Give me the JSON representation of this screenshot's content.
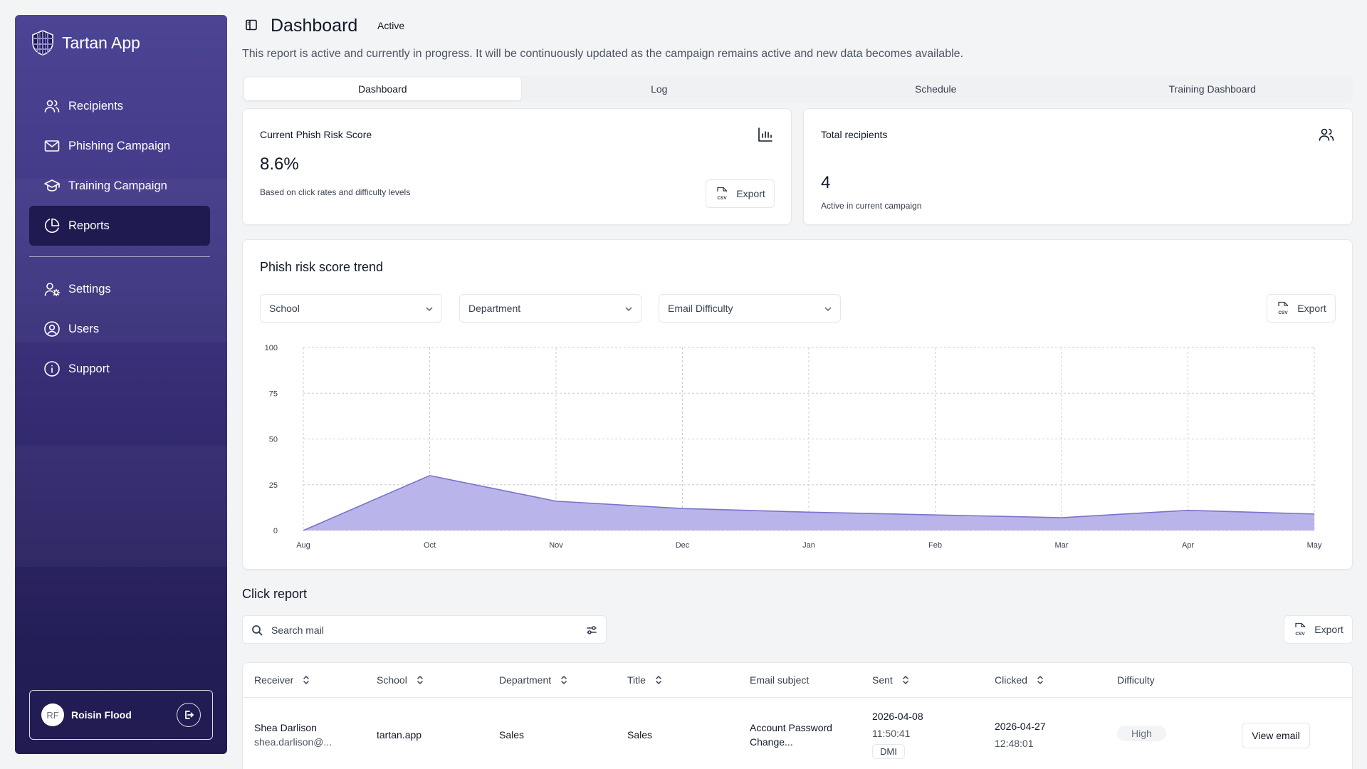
{
  "app": {
    "name": "Tartan App"
  },
  "sidebar": {
    "items": [
      {
        "label": "Recipients",
        "icon": "users-icon"
      },
      {
        "label": "Phishing Campaign",
        "icon": "mail-icon"
      },
      {
        "label": "Training Campaign",
        "icon": "graduation-cap-icon"
      },
      {
        "label": "Reports",
        "icon": "pie-chart-icon",
        "active": true
      },
      {
        "label": "Settings",
        "icon": "user-cog-icon"
      },
      {
        "label": "Users",
        "icon": "user-circle-icon"
      },
      {
        "label": "Support",
        "icon": "info-icon"
      }
    ],
    "user": {
      "initials": "RF",
      "name": "Roisin Flood"
    }
  },
  "header": {
    "title": "Dashboard",
    "status": "Active",
    "description": "This report is active and currently in progress. It will be continuously updated as the campaign remains active and new data becomes available."
  },
  "tabs": [
    "Dashboard",
    "Log",
    "Schedule",
    "Training Dashboard"
  ],
  "risk_card": {
    "label": "Current Phish Risk Score",
    "value": "8.6%",
    "subtitle": "Based on click rates and difficulty levels",
    "export_label": "Export",
    "csv_text": "CSV"
  },
  "recipients_card": {
    "label": "Total recipients",
    "value": "4",
    "subtitle": "Active in current campaign"
  },
  "trend": {
    "title": "Phish risk score trend",
    "filters": [
      "School",
      "Department",
      "Email Difficulty"
    ],
    "export_label": "Export"
  },
  "chart_data": {
    "type": "area",
    "title": "Phish risk score trend",
    "x": [
      "Aug",
      "Oct",
      "Nov",
      "Dec",
      "Jan",
      "Feb",
      "Mar",
      "Apr",
      "May"
    ],
    "series": [
      {
        "values": [
          0,
          30,
          16,
          12,
          10,
          8.5,
          7,
          11,
          9
        ]
      }
    ],
    "yticks": [
      0,
      25,
      50,
      75,
      100
    ],
    "ylim": [
      0,
      100
    ],
    "grid": true,
    "fill_color": "#b9b5ea",
    "line_color": "#7a72cc"
  },
  "click_report": {
    "title": "Click report",
    "search_placeholder": "Search mail",
    "export_label": "Export",
    "columns": [
      "Receiver",
      "School",
      "Department",
      "Title",
      "Email subject",
      "Sent",
      "Clicked",
      "Difficulty"
    ],
    "rows": [
      {
        "receiver_name": "Shea Darlison",
        "receiver_email": "shea.darlison@...",
        "school": "tartan.app",
        "department": "Sales",
        "title": "Sales",
        "subject_line1": "Account Password",
        "subject_line2": "Change...",
        "sent_date": "2026-04-08",
        "sent_time": "11:50:41",
        "sent_tag": "DMI",
        "clicked_date": "2026-04-27",
        "clicked_time": "12:48:01",
        "difficulty": "High",
        "action": "View email"
      }
    ]
  }
}
